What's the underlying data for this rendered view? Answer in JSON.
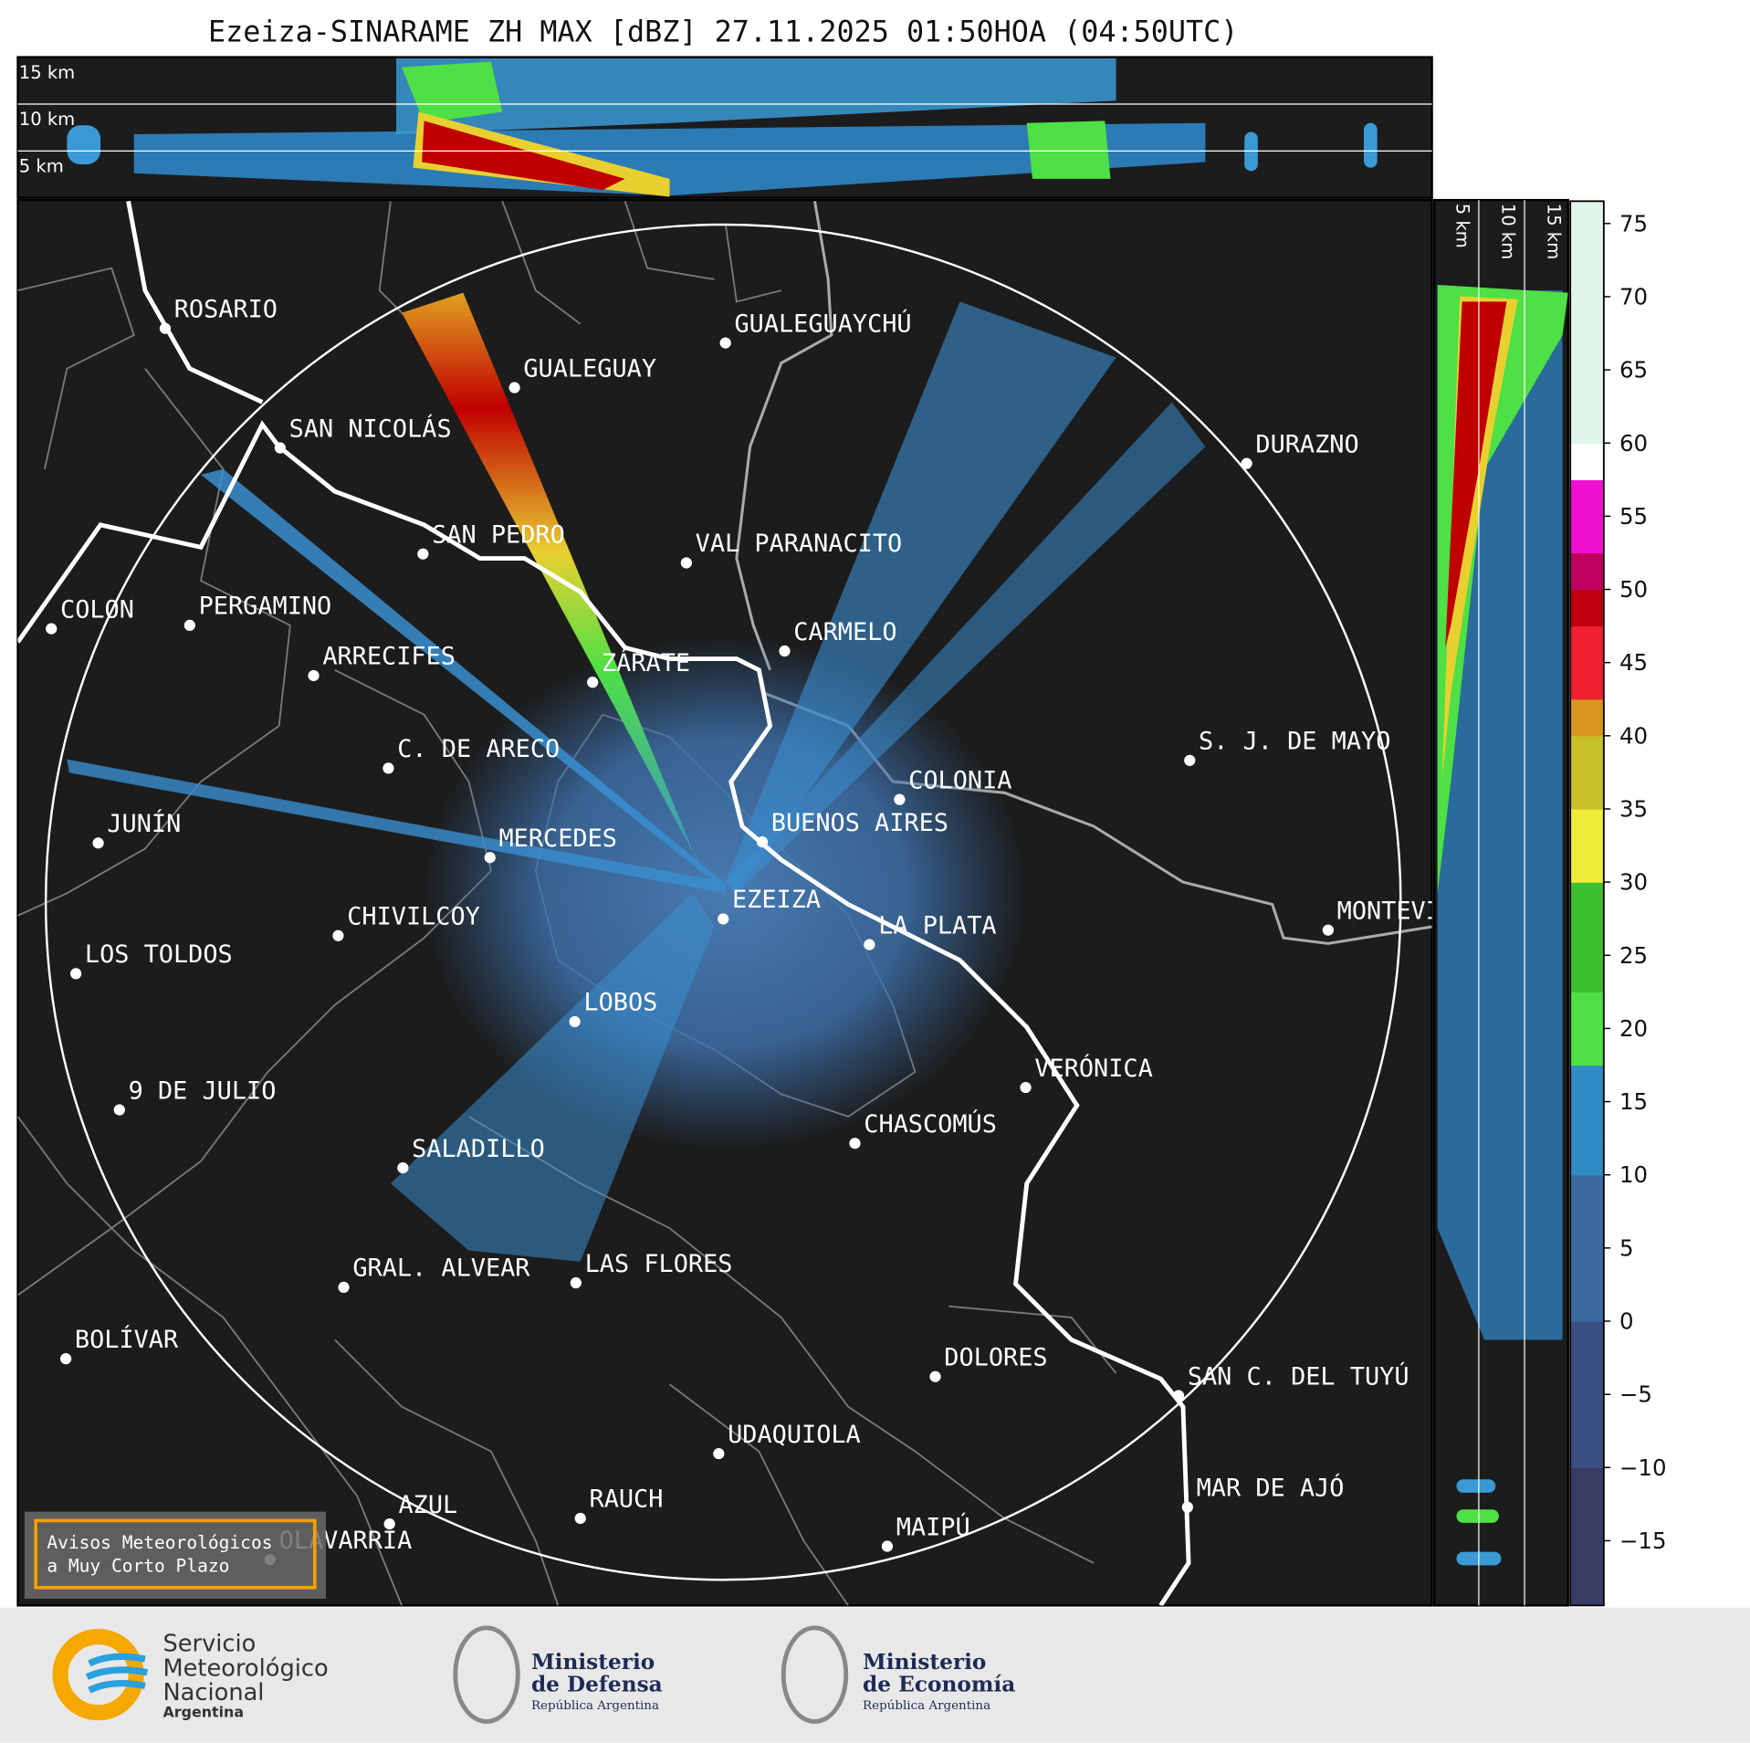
{
  "title": "Ezeiza-SINARAME ZH MAX [dBZ] 27.11.2025 01:50HOA (04:50UTC)",
  "height_labels": {
    "top": [
      "15 km",
      "10 km",
      "5 km"
    ],
    "side": [
      "5 km",
      "10 km",
      "15 km"
    ]
  },
  "cities": [
    "ROSARIO",
    "GUALEGUAYCHÚ",
    "GUALEGUAY",
    "SAN NICOLÁS",
    "DURAZNO",
    "SAN PEDRO",
    "VAL PARANACITO",
    "COLON",
    "PERGAMINO",
    "CARMELO",
    "ARRECIFES",
    "ZÁRATE",
    "C. DE ARECO",
    "S. J. DE MAYO",
    "COLONIA",
    "JUNÍN",
    "BUENOS AIRES",
    "MERCEDES",
    "EZEIZA",
    "CHIVILCOY",
    "MONTEVIDEO",
    "LA PLATA",
    "LOS TOLDOS",
    "LOBOS",
    "VERÓNICA",
    "9 DE JULIO",
    "CHASCOMÚS",
    "SALADILLO",
    "GRAL. ALVEAR",
    "LAS FLORES",
    "BOLÍVAR",
    "DOLORES",
    "SAN C. DEL TUYÚ",
    "UDAQUIOLA",
    "MAR DE AJÓ",
    "AZUL",
    "RAUCH",
    "MAIPÚ",
    "OLAVARRÍA"
  ],
  "colorbar": {
    "ticks": [
      75,
      70,
      65,
      60,
      55,
      50,
      45,
      40,
      35,
      30,
      25,
      20,
      15,
      10,
      5,
      0,
      {
        "value": -5,
        "label": "−5"
      },
      {
        "value": -10,
        "label": "−10"
      },
      {
        "value": -15,
        "label": "−15"
      }
    ]
  },
  "warning_box": [
    "Avisos Meteorológicos",
    "a Muy Corto Plazo"
  ],
  "logos": [
    {
      "lines": [
        "Servicio",
        "Meteorológico",
        "Nacional",
        "Argentina"
      ]
    },
    {
      "lines": [
        "Ministerio",
        "de Defensa",
        "República Argentina"
      ]
    },
    {
      "lines": [
        "Ministerio",
        "de Economía",
        "República Argentina"
      ]
    }
  ]
}
